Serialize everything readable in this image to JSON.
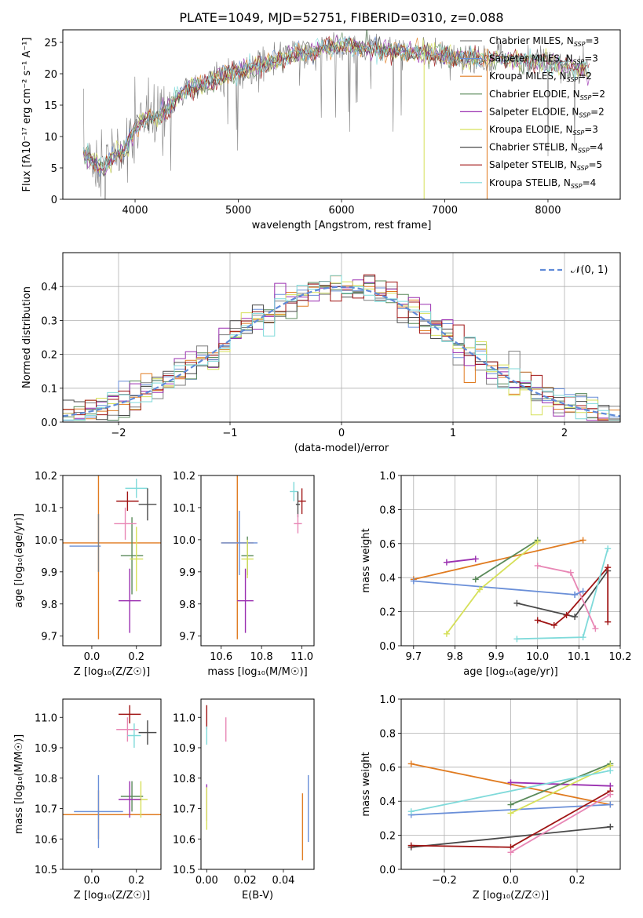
{
  "figure_title": "PLATE=1049, MJD=52751, FIBERID=0310, z=0.088",
  "colors": {
    "chabrier_miles": "#7f7f7f",
    "salpeter_miles": "#6a8fd8",
    "kroupa_miles": "#e07b20",
    "chabrier_elodie": "#5a8a5a",
    "salpeter_elodie": "#9a2fb0",
    "kroupa_elodie": "#d6e05a",
    "chabrier_stelib": "#4a4a4a",
    "salpeter_stelib": "#a01515",
    "kroupa_stelib": "#7fdada",
    "extra_pink": "#e887b5",
    "normal_fit": "#5f8ad8"
  },
  "chart_data": [
    {
      "id": "spectrum",
      "type": "line",
      "title": "PLATE=1049, MJD=52751, FIBERID=0310, z=0.088",
      "xlabel": "wavelength [Angstrom, rest frame]",
      "ylabel": "Flux [fλ10⁻¹⁷ erg cm⁻² s⁻¹ A⁻¹]",
      "xlim": [
        3300,
        8700
      ],
      "ylim": [
        0,
        27
      ],
      "xticks": [
        "4000",
        "5000",
        "6000",
        "7000",
        "8000"
      ],
      "yticks": [
        "0",
        "5",
        "10",
        "15",
        "20",
        "25"
      ],
      "grid": false,
      "legend_position": "top-right",
      "legend": [
        "Chabrier MILES, N_SSP=3",
        "Salpeter MILES, N_SSP=3",
        "Kroupa MILES, N_SSP=2",
        "Chabrier ELODIE, N_SSP=2",
        "Salpeter ELODIE, N_SSP=2",
        "Kroupa ELODIE, N_SSP=3",
        "Chabrier STELIB, N_SSP=4",
        "Salpeter STELIB, N_SSP=5",
        "Kroupa STELIB, N_SSP=4"
      ],
      "continuum": {
        "x": [
          3500,
          3600,
          3700,
          3800,
          3900,
          3950,
          4000,
          4100,
          4200,
          4300,
          4400,
          4500,
          4700,
          4900,
          5100,
          5300,
          5500,
          5700,
          6000,
          6300,
          6600,
          6900,
          7200,
          7500,
          7800,
          8100,
          8400
        ],
        "y": [
          7.5,
          6,
          5,
          7,
          8,
          9.5,
          11,
          13,
          13,
          14,
          16,
          17.5,
          18.5,
          20,
          20.5,
          22,
          23,
          23.5,
          24.5,
          24,
          23.5,
          23,
          22.5,
          22.5,
          22,
          21.5,
          20.5
        ]
      }
    },
    {
      "id": "residuals",
      "type": "histogram",
      "xlabel": "(data-model)/error",
      "ylabel": "Normed distribution",
      "xlim": [
        -2.5,
        2.5
      ],
      "ylim": [
        0,
        0.5
      ],
      "xticks": [
        "−2",
        "−1",
        "0",
        "1",
        "2"
      ],
      "yticks": [
        "0.0",
        "0.1",
        "0.2",
        "0.3",
        "0.4"
      ],
      "grid": true,
      "legend_position": "top-right",
      "legend": "𝒩(0, 1)",
      "bin_width": 0.1,
      "reference_curve": "normal, mean 0, sigma 1"
    },
    {
      "id": "age_vs_Z",
      "type": "errorbar",
      "xlabel": "Z [log₁₀(Z/Z☉)]",
      "ylabel": "age  [log₁₀(age/yr)]",
      "xlim": [
        -0.13,
        0.31
      ],
      "ylim": [
        9.67,
        10.2
      ],
      "xticks": [
        "0.0",
        "0.2"
      ],
      "yticks": [
        "9.7",
        "9.8",
        "9.9",
        "10.0",
        "10.1",
        "10.2"
      ],
      "grid": false,
      "points": [
        {
          "model": "kroupa_miles",
          "x": 0.03,
          "xerr": 0.28,
          "y": 9.99,
          "yerr": 0.3
        },
        {
          "model": "salpeter_miles",
          "x": -0.03,
          "xerr": 0.07,
          "y": 9.98,
          "yerr": 0.0
        },
        {
          "model": "chabrier_miles",
          "x": 0.03,
          "xerr": 0.0,
          "y": 9.99,
          "yerr": 0.09
        },
        {
          "model": "chabrier_elodie",
          "x": 0.18,
          "xerr": 0.05,
          "y": 9.95,
          "yerr": 0.12
        },
        {
          "model": "kroupa_elodie",
          "x": 0.2,
          "xerr": 0.03,
          "y": 9.94,
          "yerr": 0.1
        },
        {
          "model": "salpeter_elodie",
          "x": 0.17,
          "xerr": 0.05,
          "y": 9.81,
          "yerr": 0.1
        },
        {
          "model": "salpeter_stelib",
          "x": 0.16,
          "xerr": 0.05,
          "y": 10.12,
          "yerr": 0.03
        },
        {
          "model": "kroupa_stelib",
          "x": 0.2,
          "xerr": 0.05,
          "y": 10.16,
          "yerr": 0.03
        },
        {
          "model": "chabrier_stelib",
          "x": 0.25,
          "xerr": 0.04,
          "y": 10.11,
          "yerr": 0.05
        },
        {
          "model": "extra_pink",
          "x": 0.15,
          "xerr": 0.05,
          "y": 10.05,
          "yerr": 0.05
        }
      ]
    },
    {
      "id": "age_vs_mass",
      "type": "errorbar",
      "xlabel": "mass [log₁₀(M/M☉)]",
      "ylabel": "",
      "xlim": [
        10.5,
        11.06
      ],
      "ylim": [
        9.67,
        10.2
      ],
      "xticks": [
        "10.6",
        "10.8",
        "11.0"
      ],
      "yticks": [
        "9.7",
        "9.8",
        "9.9",
        "10.0",
        "10.1",
        "10.2"
      ],
      "grid": false,
      "points": [
        {
          "model": "kroupa_miles",
          "x": 10.68,
          "xerr": 0.08,
          "y": 9.99,
          "yerr": 0.3
        },
        {
          "model": "salpeter_miles",
          "x": 10.69,
          "xerr": 0.09,
          "y": 9.99,
          "yerr": 0.1
        },
        {
          "model": "chabrier_elodie",
          "x": 10.73,
          "xerr": 0.03,
          "y": 9.95,
          "yerr": 0.06
        },
        {
          "model": "kroupa_elodie",
          "x": 10.73,
          "xerr": 0.03,
          "y": 9.94,
          "yerr": 0.06
        },
        {
          "model": "salpeter_elodie",
          "x": 10.72,
          "xerr": 0.04,
          "y": 9.81,
          "yerr": 0.1
        },
        {
          "model": "kroupa_stelib",
          "x": 10.96,
          "xerr": 0.02,
          "y": 10.15,
          "yerr": 0.03
        },
        {
          "model": "salpeter_stelib",
          "x": 11.0,
          "xerr": 0.02,
          "y": 10.12,
          "yerr": 0.04
        },
        {
          "model": "chabrier_stelib",
          "x": 10.98,
          "xerr": 0.01,
          "y": 10.11,
          "yerr": 0.04
        },
        {
          "model": "extra_pink",
          "x": 10.98,
          "xerr": 0.02,
          "y": 10.05,
          "yerr": 0.03
        }
      ]
    },
    {
      "id": "weight_vs_age",
      "type": "line",
      "xlabel": "age  [log₁₀(age/yr)]",
      "ylabel": "mass weight",
      "xlim": [
        9.67,
        10.2
      ],
      "ylim": [
        0.0,
        1.0
      ],
      "xticks": [
        "9.7",
        "9.8",
        "9.9",
        "10.0",
        "10.1",
        "10.2"
      ],
      "yticks": [
        "0.0",
        "0.2",
        "0.4",
        "0.6",
        "0.8",
        "1.0"
      ],
      "grid": true,
      "series": [
        {
          "model": "kroupa_miles",
          "x": [
            9.7,
            10.11
          ],
          "y": [
            0.39,
            0.62
          ]
        },
        {
          "model": "salpeter_miles",
          "x": [
            9.7,
            10.09
          ],
          "y": [
            0.38,
            0.3
          ]
        },
        {
          "model": "chabrier_elodie",
          "x": [
            9.85,
            10.0
          ],
          "y": [
            0.39,
            0.62
          ]
        },
        {
          "model": "salpeter_elodie",
          "x": [
            9.78,
            9.85
          ],
          "y": [
            0.49,
            0.51
          ]
        },
        {
          "model": "kroupa_elodie",
          "x": [
            9.78,
            9.86,
            10.0
          ],
          "y": [
            0.07,
            0.33,
            0.61
          ]
        },
        {
          "model": "chabrier_stelib",
          "x": [
            9.95,
            10.09,
            10.17
          ],
          "y": [
            0.25,
            0.17,
            0.44
          ]
        },
        {
          "model": "salpeter_stelib",
          "x": [
            10.0,
            10.04,
            10.07,
            10.17,
            10.17
          ],
          "y": [
            0.15,
            0.12,
            0.18,
            0.46,
            0.14
          ]
        },
        {
          "model": "kroupa_stelib",
          "x": [
            9.95,
            10.11,
            10.17
          ],
          "y": [
            0.04,
            0.05,
            0.57
          ]
        },
        {
          "model": "extra_pink",
          "x": [
            10.0,
            10.08,
            10.14
          ],
          "y": [
            0.47,
            0.43,
            0.1
          ]
        },
        {
          "model": "salpeter_miles",
          "x": [
            10.09,
            10.11
          ],
          "y": [
            0.3,
            0.32
          ]
        }
      ]
    },
    {
      "id": "mass_vs_Z",
      "type": "errorbar",
      "xlabel": "Z [log₁₀(Z/Z☉)]",
      "ylabel": "mass [log₁₀(M/M☉)]",
      "xlim": [
        -0.13,
        0.31
      ],
      "ylim": [
        10.5,
        11.06
      ],
      "xticks": [
        "0.0",
        "0.2"
      ],
      "yticks": [
        "10.5",
        "10.6",
        "10.7",
        "10.8",
        "10.9",
        "11.0"
      ],
      "grid": false,
      "points": [
        {
          "model": "kroupa_miles",
          "x": 0.03,
          "xerr": 0.28,
          "y": 10.68,
          "yerr": 0.08
        },
        {
          "model": "salpeter_miles",
          "x": 0.03,
          "xerr": 0.11,
          "y": 10.69,
          "yerr": 0.12
        },
        {
          "model": "chabrier_elodie",
          "x": 0.18,
          "xerr": 0.05,
          "y": 10.74,
          "yerr": 0.05
        },
        {
          "model": "kroupa_elodie",
          "x": 0.22,
          "xerr": 0.03,
          "y": 10.73,
          "yerr": 0.06
        },
        {
          "model": "salpeter_elodie",
          "x": 0.17,
          "xerr": 0.05,
          "y": 10.73,
          "yerr": 0.06
        },
        {
          "model": "salpeter_stelib",
          "x": 0.17,
          "xerr": 0.05,
          "y": 11.01,
          "yerr": 0.03
        },
        {
          "model": "extra_pink",
          "x": 0.16,
          "xerr": 0.05,
          "y": 10.96,
          "yerr": 0.04
        },
        {
          "model": "kroupa_stelib",
          "x": 0.19,
          "xerr": 0.03,
          "y": 10.94,
          "yerr": 0.04
        },
        {
          "model": "chabrier_stelib",
          "x": 0.25,
          "xerr": 0.04,
          "y": 10.95,
          "yerr": 0.04
        }
      ]
    },
    {
      "id": "mass_vs_ebv",
      "type": "errorbar",
      "xlabel": "E(B-V)",
      "ylabel": "",
      "xlim": [
        -0.003,
        0.056
      ],
      "ylim": [
        10.5,
        11.06
      ],
      "xticks": [
        "0.00",
        "0.02",
        "0.04"
      ],
      "yticks": [
        "10.5",
        "10.6",
        "10.7",
        "10.8",
        "10.9",
        "11.0"
      ],
      "grid": false,
      "points": [
        {
          "model": "salpeter_stelib",
          "x": 0.0,
          "xerr": 0.0,
          "y": 11.0,
          "yerr": 0.04
        },
        {
          "model": "kroupa_stelib",
          "x": 0.0,
          "xerr": 0.0,
          "y": 10.94,
          "yerr": 0.03
        },
        {
          "model": "extra_pink",
          "x": 0.01,
          "xerr": 0.0,
          "y": 10.96,
          "yerr": 0.04
        },
        {
          "model": "salpeter_elodie",
          "x": 0.0,
          "xerr": 0.0,
          "y": 10.72,
          "yerr": 0.06
        },
        {
          "model": "kroupa_elodie",
          "x": 0.0,
          "xerr": 0.0,
          "y": 10.7,
          "yerr": 0.07
        },
        {
          "model": "kroupa_miles",
          "x": 0.05,
          "xerr": 0.0,
          "y": 10.64,
          "yerr": 0.11
        },
        {
          "model": "salpeter_miles",
          "x": 0.053,
          "xerr": 0.0,
          "y": 10.7,
          "yerr": 0.11
        }
      ]
    },
    {
      "id": "weight_vs_Z",
      "type": "line",
      "xlabel": "Z [log₁₀(Z/Z☉)]",
      "ylabel": "mass weight",
      "xlim": [
        -0.33,
        0.33
      ],
      "ylim": [
        0.0,
        1.0
      ],
      "xticks": [
        "−0.2",
        "0.0",
        "0.2"
      ],
      "yticks": [
        "0.0",
        "0.2",
        "0.4",
        "0.6",
        "0.8",
        "1.0"
      ],
      "grid": true,
      "series": [
        {
          "model": "kroupa_miles",
          "x": [
            -0.3,
            0.3
          ],
          "y": [
            0.62,
            0.38
          ]
        },
        {
          "model": "salpeter_miles",
          "x": [
            -0.3,
            0.3
          ],
          "y": [
            0.32,
            0.38
          ]
        },
        {
          "model": "salpeter_elodie",
          "x": [
            0.0,
            0.3
          ],
          "y": [
            0.51,
            0.49
          ]
        },
        {
          "model": "chabrier_elodie",
          "x": [
            0.0,
            0.3
          ],
          "y": [
            0.38,
            0.62
          ]
        },
        {
          "model": "kroupa_elodie",
          "x": [
            0.0,
            0.3
          ],
          "y": [
            0.33,
            0.61
          ]
        },
        {
          "model": "kroupa_stelib",
          "x": [
            -0.3,
            0.3
          ],
          "y": [
            0.34,
            0.58
          ]
        },
        {
          "model": "chabrier_stelib",
          "x": [
            -0.3,
            0.3
          ],
          "y": [
            0.13,
            0.25
          ]
        },
        {
          "model": "salpeter_stelib",
          "x": [
            -0.3,
            0.0,
            0.3
          ],
          "y": [
            0.14,
            0.13,
            0.46
          ]
        },
        {
          "model": "extra_pink",
          "x": [
            0.0,
            0.3
          ],
          "y": [
            0.1,
            0.44
          ]
        }
      ]
    }
  ]
}
